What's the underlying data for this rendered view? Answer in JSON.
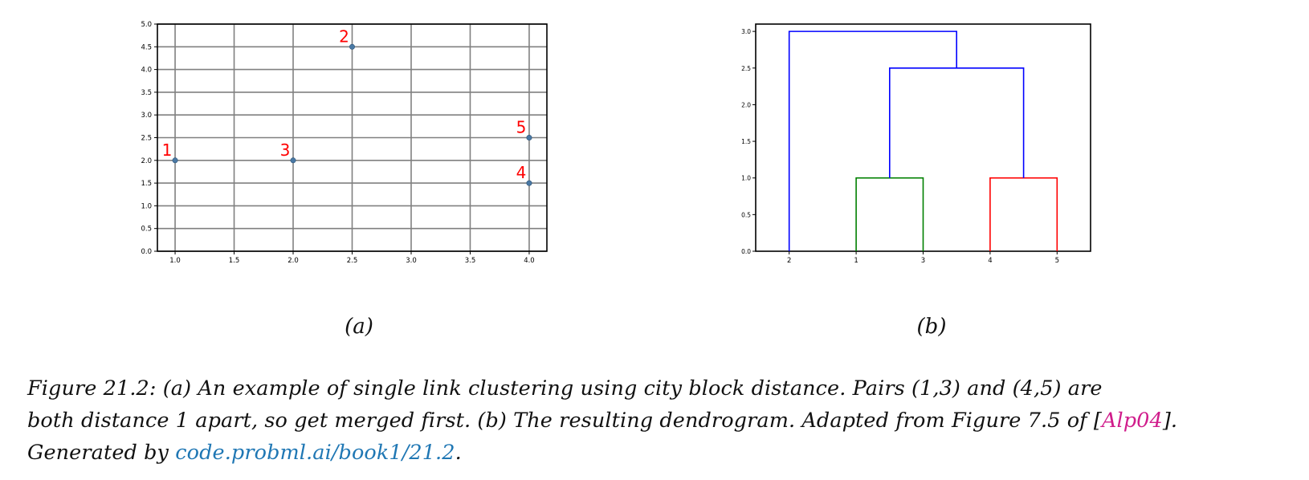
{
  "chart_data": [
    {
      "type": "scatter",
      "title": "",
      "xlabel": "",
      "ylabel": "",
      "xlim": [
        0.85,
        4.15
      ],
      "ylim": [
        0.0,
        5.0
      ],
      "grid": true,
      "xticks": [
        "1.0",
        "1.5",
        "2.0",
        "2.5",
        "3.0",
        "3.5",
        "4.0"
      ],
      "yticks": [
        "0.0",
        "0.5",
        "1.0",
        "1.5",
        "2.0",
        "2.5",
        "3.0",
        "3.5",
        "4.0",
        "4.5",
        "5.0"
      ],
      "points": [
        {
          "label": "1",
          "x": 1.0,
          "y": 2.0
        },
        {
          "label": "2",
          "x": 2.5,
          "y": 4.5
        },
        {
          "label": "3",
          "x": 2.0,
          "y": 2.0
        },
        {
          "label": "4",
          "x": 4.0,
          "y": 1.5
        },
        {
          "label": "5",
          "x": 4.0,
          "y": 2.5
        }
      ],
      "colors": {
        "point": "#4a79a5",
        "label": "#ff0000",
        "grid": "#808080"
      }
    },
    {
      "type": "dendrogram",
      "title": "",
      "xlabel": "",
      "ylabel": "",
      "ylim": [
        0.0,
        3.1
      ],
      "leaves": [
        "2",
        "1",
        "3",
        "4",
        "5"
      ],
      "yticks": [
        "0.0",
        "0.5",
        "1.0",
        "1.5",
        "2.0",
        "2.5",
        "3.0"
      ],
      "merges": [
        {
          "clusters": [
            "1",
            "3"
          ],
          "height": 1.0,
          "color": "#008000"
        },
        {
          "clusters": [
            "4",
            "5"
          ],
          "height": 1.0,
          "color": "#ff0000"
        },
        {
          "clusters": [
            "(1,3)",
            "(4,5)"
          ],
          "height": 2.5,
          "color": "#0000ff"
        },
        {
          "clusters": [
            "2",
            "(1,3,4,5)"
          ],
          "height": 3.0,
          "color": "#0000ff"
        }
      ]
    }
  ],
  "panel_labels": {
    "a": "(a)",
    "b": "(b)"
  },
  "caption": {
    "line1": "Figure 21.2: (a) An example of single link clustering using city block distance. Pairs (1,3) and (4,5) are",
    "line2_pre": "both distance 1 apart, so get merged first. (b) The resulting dendrogram. Adapted from Figure 7.5 of [",
    "line2_cite": "Alp04",
    "line2_post": "].",
    "line3_pre": "Generated by ",
    "line3_link": "code.probml.ai/book1/21.2",
    "line3_post": "."
  }
}
